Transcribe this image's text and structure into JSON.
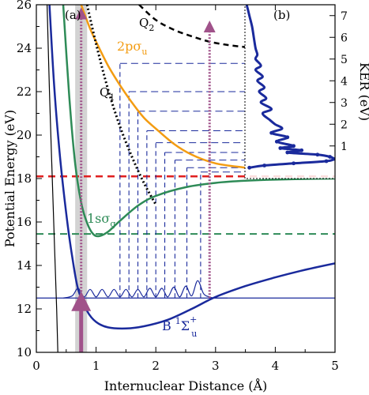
{
  "chart_data": {
    "type": "line",
    "panels": {
      "a": {
        "label": "(a)",
        "xlabel": "Internuclear Distance (Å)",
        "ylabel": "Potential Energy (eV)",
        "xlim": [
          0,
          5
        ],
        "ylim": [
          10,
          26
        ],
        "xticks": [
          "0",
          "1",
          "2",
          "3",
          "4",
          "5"
        ],
        "yticks": [
          "10",
          "12",
          "14",
          "16",
          "18",
          "20",
          "22",
          "24",
          "26"
        ]
      },
      "b": {
        "label": "(b)",
        "ylabel": "KER (eV)",
        "ylim": [
          -0.5,
          7.5
        ],
        "yticks": [
          "1",
          "2",
          "3",
          "4",
          "5",
          "6",
          "7"
        ]
      }
    },
    "curve_labels": {
      "sigma_g_prefix": "1sσ",
      "sigma_g_sub": "g",
      "pi_u_prefix": "2pσ",
      "pi_u_sub": "u",
      "b_prefix": "B",
      "b_sup1": "1",
      "b_sigma": "Σ",
      "b_sup2": "+",
      "b_sub": "u",
      "q1": "Q",
      "q1_sub": "1",
      "q2": "Q",
      "q2_sub": "2"
    },
    "series": [
      {
        "id": "1s_sigma_g",
        "color": "#2e8b57",
        "x": [
          0.45,
          0.55,
          0.65,
          0.75,
          0.85,
          0.95,
          1.05,
          1.2,
          1.4,
          1.7,
          2.0,
          2.5,
          3.0,
          3.5,
          4.0,
          4.5,
          5.0
        ],
        "y": [
          26.0,
          21.8,
          18.7,
          16.9,
          15.95,
          15.45,
          15.35,
          15.55,
          16.05,
          16.75,
          17.2,
          17.6,
          17.8,
          17.9,
          17.95,
          17.98,
          18.0
        ]
      },
      {
        "id": "2p_sigma_u",
        "color": "#f39c12",
        "x": [
          0.75,
          0.9,
          1.0,
          1.2,
          1.4,
          1.6,
          1.8,
          2.0,
          2.3,
          2.6,
          3.0,
          3.5
        ],
        "y": [
          26.0,
          24.9,
          24.3,
          23.2,
          22.3,
          21.5,
          20.8,
          20.3,
          19.6,
          19.1,
          18.7,
          18.5
        ]
      },
      {
        "id": "B_state",
        "color": "#1a2a9c",
        "x": [
          0.22,
          0.3,
          0.4,
          0.5,
          0.6,
          0.7,
          0.85,
          1.0,
          1.2,
          1.5,
          1.8,
          2.2,
          2.6,
          3.0,
          3.5,
          4.0,
          4.5,
          5.0
        ],
        "y": [
          26.0,
          22.2,
          18.9,
          16.4,
          14.4,
          12.9,
          11.9,
          11.4,
          11.15,
          11.1,
          11.2,
          11.5,
          12.0,
          12.55,
          13.05,
          13.45,
          13.8,
          14.1
        ]
      },
      {
        "id": "left_wall",
        "color": "#000000",
        "x": [
          0.18,
          0.22,
          0.26,
          0.3,
          0.34,
          0.36
        ],
        "y": [
          26.0,
          22.0,
          18.5,
          15.2,
          12.0,
          10.0
        ]
      },
      {
        "id": "Q1",
        "color": "#000000",
        "x": [
          0.85,
          1.0,
          1.2,
          1.4,
          1.6,
          1.8,
          2.0
        ],
        "y": [
          26.0,
          24.2,
          22.1,
          20.4,
          19.0,
          17.8,
          16.8
        ]
      },
      {
        "id": "Q2",
        "color": "#000000",
        "x": [
          1.72,
          2.0,
          2.3,
          2.6,
          2.9,
          3.2,
          3.5
        ],
        "y": [
          26.0,
          25.3,
          24.85,
          24.55,
          24.3,
          24.15,
          24.05
        ]
      }
    ],
    "reference_lines": {
      "red_dashed_y": 18.1,
      "green_dashed_y": 15.45,
      "blue_solid_y": 12.5,
      "gray_band_x": [
        0.65,
        0.85
      ],
      "arrow_x": 0.75,
      "dotted_arrow_x1": 0.75,
      "dotted_arrow_x2": 2.9
    },
    "vibrational_levels": {
      "x": [
        1.4,
        1.55,
        1.7,
        1.85,
        2.0,
        2.15,
        2.32,
        2.52,
        2.75
      ],
      "y": [
        23.3,
        22.0,
        21.1,
        20.2,
        19.65,
        19.2,
        18.85,
        18.5,
        18.3
      ]
    },
    "wavepacket": {
      "x": [
        0.45,
        0.6,
        0.7,
        0.8,
        0.9,
        1.0,
        1.1,
        1.2,
        1.3,
        1.4,
        1.5,
        1.6,
        1.7,
        1.8,
        1.9,
        2.0,
        2.1,
        2.2,
        2.3,
        2.4,
        2.5,
        2.6,
        2.7,
        2.8,
        2.9,
        3.0,
        3.2
      ],
      "y": [
        12.5,
        12.6,
        12.95,
        12.55,
        12.9,
        12.55,
        12.9,
        12.55,
        12.9,
        12.55,
        12.9,
        12.55,
        12.9,
        12.55,
        12.95,
        12.55,
        12.95,
        12.55,
        13.0,
        12.55,
        13.05,
        12.6,
        13.3,
        12.7,
        12.55,
        12.5,
        12.5
      ]
    },
    "ker_spectrum": {
      "color": "#1a2a9c",
      "ker": [
        7.5,
        7.0,
        6.5,
        6.0,
        5.5,
        5.2,
        5.0,
        4.7,
        4.5,
        4.2,
        4.0,
        3.7,
        3.5,
        3.2,
        3.0,
        2.7,
        2.5,
        2.2,
        2.0,
        1.8,
        1.6,
        1.4,
        1.2,
        1.0,
        0.9,
        0.8,
        0.7,
        0.6,
        0.5,
        0.4,
        0.3,
        0.2,
        0.1,
        0.0
      ],
      "counts": [
        0.02,
        0.05,
        0.08,
        0.1,
        0.12,
        0.14,
        0.12,
        0.18,
        0.12,
        0.2,
        0.14,
        0.22,
        0.16,
        0.24,
        0.18,
        0.3,
        0.2,
        0.28,
        0.34,
        0.42,
        0.3,
        0.48,
        0.36,
        0.55,
        0.4,
        0.64,
        0.48,
        0.82,
        0.96,
        1.0,
        0.92,
        0.55,
        0.22,
        0.05
      ]
    }
  }
}
